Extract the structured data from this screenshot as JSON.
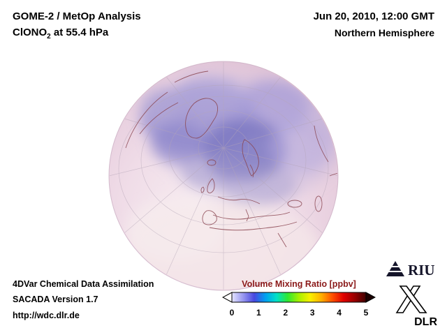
{
  "header": {
    "line1": "GOME-2 / MetOp Analysis",
    "line2_prefix": "ClONO",
    "line2_sub": "2",
    "line2_suffix": " at 55.4 hPa",
    "date": "Jun 20, 2010, 12:00 GMT",
    "region": "Northern Hemisphere"
  },
  "footer": {
    "line1": "4DVar Chemical Data Assimilation",
    "line2": "SACADA Version 1.7",
    "line3": "http://wdc.dlr.de"
  },
  "colorbar": {
    "title": "Volume Mixing Ratio [ppbv]",
    "title_color": "#8b1a1a",
    "units": "ppbv",
    "ticks": [
      "0",
      "1",
      "2",
      "3",
      "4",
      "5"
    ],
    "range": [
      0,
      5
    ],
    "left_arrow_color": "#ffffff",
    "right_arrow_color": "#1c0000",
    "gradient": [
      "#e4e4ff",
      "#9898f0",
      "#4848e0",
      "#00a0f0",
      "#00e0c8",
      "#30e830",
      "#a8f000",
      "#f8f000",
      "#ffb000",
      "#ff5000",
      "#e00000",
      "#980000",
      "#400000"
    ]
  },
  "map": {
    "projection": "Northern Hemisphere orthographic",
    "base_color": "#eedae6",
    "high_value_color": "#7d78c2"
  },
  "logos": {
    "riu": "RIU",
    "dlr": "DLR"
  }
}
